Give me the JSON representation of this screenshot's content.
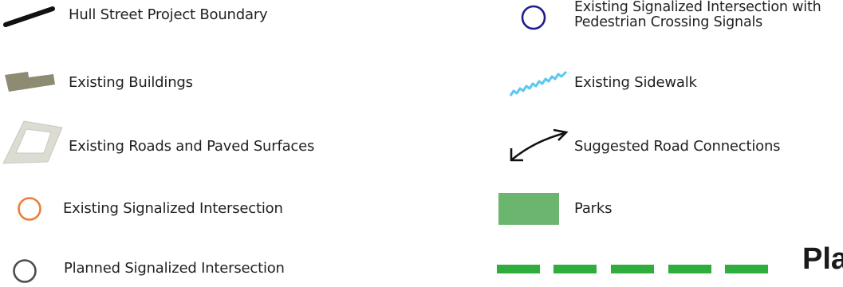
{
  "legend": {
    "items": [
      {
        "label": "Hull Street Project Boundary",
        "symbol": "black-line-icon",
        "color": "#111111"
      },
      {
        "label": "Existing Buildings",
        "symbol": "building-shape-icon",
        "color": "#8e8b73"
      },
      {
        "label": "Existing Roads and Paved Surfaces",
        "symbol": "paved-surface-icon",
        "color": "#dcdcd3"
      },
      {
        "label": "Existing Signalized Intersection",
        "symbol": "orange-circle-icon",
        "color": "#f07c3a"
      },
      {
        "label": "Planned Signalized Intersection",
        "symbol": "gray-circle-icon",
        "color": "#4d4d4d"
      },
      {
        "label_line1": "Existing Signalized Intersection with",
        "label_line2": "Pedestrian Crossing Signals",
        "symbol": "blue-circle-icon",
        "color": "#1f1d8c"
      },
      {
        "label": "Existing Sidewalk",
        "symbol": "zigzag-sidewalk-icon",
        "color": "#5cc8f0"
      },
      {
        "label": "Suggested Road Connections",
        "symbol": "double-arrow-icon",
        "color": "#111111"
      },
      {
        "label": "Parks",
        "symbol": "green-rectangle-icon",
        "color": "#6bb56f"
      },
      {
        "symbol": "green-dashed-line-icon",
        "color": "#2fae3e"
      }
    ],
    "cut_off_text": "Pla"
  }
}
